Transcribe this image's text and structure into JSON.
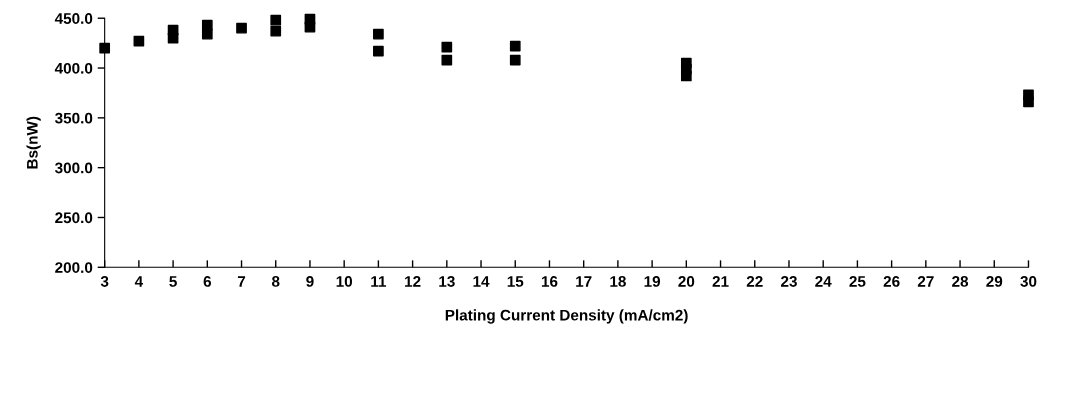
{
  "chart_data": {
    "type": "scatter",
    "xlabel": "Plating Current Density (mA/cm2)",
    "ylabel": "Bs(nW)",
    "x": [
      3,
      4,
      5,
      5,
      6,
      6,
      7,
      8,
      8,
      9,
      9,
      11,
      11,
      13,
      13,
      15,
      15,
      20,
      20,
      20,
      30,
      30
    ],
    "values": [
      420,
      427,
      438,
      430,
      443,
      434,
      440,
      448,
      437,
      449,
      441,
      434,
      417,
      421,
      408,
      422,
      408,
      405,
      399,
      392,
      373,
      366
    ],
    "color": "#000000",
    "marker": "square",
    "grid": false,
    "legend": false,
    "xlim": [
      3,
      30
    ],
    "xticks": [
      3,
      4,
      5,
      6,
      7,
      8,
      9,
      10,
      11,
      12,
      13,
      14,
      15,
      16,
      17,
      18,
      19,
      20,
      21,
      22,
      23,
      24,
      25,
      26,
      27,
      28,
      29,
      30
    ],
    "ylim": [
      200,
      450
    ],
    "yticks": [
      {
        "value": 200,
        "label": "200.0"
      },
      {
        "value": 250,
        "label": "250.0"
      },
      {
        "value": 300,
        "label": "300.0"
      },
      {
        "value": 350,
        "label": "350.0"
      },
      {
        "value": 400,
        "label": "400.0"
      },
      {
        "value": 450,
        "label": "450.0"
      }
    ]
  }
}
